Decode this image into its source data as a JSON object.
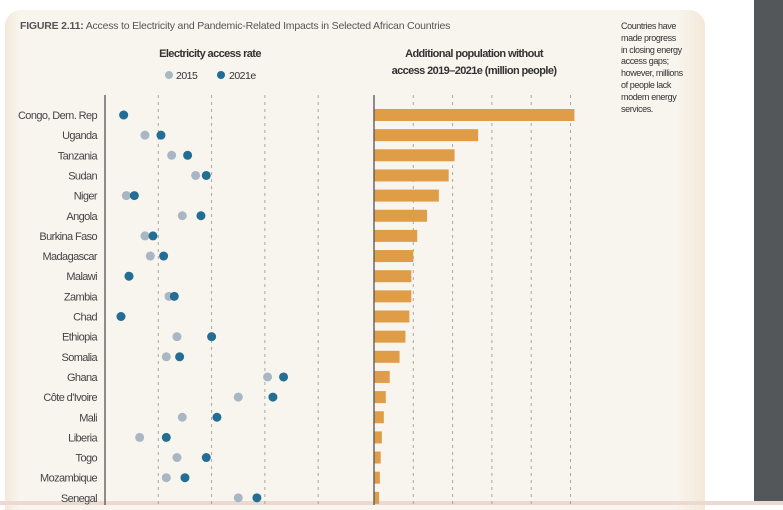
{
  "figure": {
    "label": "FIGURE 2.11:",
    "title": "Access to Electricity and Pandemic-Related Impacts in Selected African Countries"
  },
  "side_note": [
    "Countries have",
    "made progress",
    "in closing energy",
    "access gaps;",
    "however, millions",
    "of people lack",
    "modern energy",
    "services."
  ],
  "colors": {
    "c2015": "#a9b6c4",
    "c2021": "#236e94",
    "bar": "#e09d48",
    "grid": "#a8a8a8",
    "axis": "#555555"
  },
  "chart_data": [
    {
      "type": "scatter",
      "title": "Electricity access rate",
      "legend": [
        {
          "name": "2015",
          "color": "#a9b6c4"
        },
        {
          "name": "2021e",
          "color": "#236e94"
        }
      ],
      "legend_placement": "top",
      "categories": [
        "Congo, Dem. Rep",
        "Uganda",
        "Tanzania",
        "Sudan",
        "Niger",
        "Angola",
        "Burkina Faso",
        "Madagascar",
        "Malawi",
        "Zambia",
        "Chad",
        "Ethiopia",
        "Somalia",
        "Ghana",
        "Côte d'Ivoire",
        "Mali",
        "Liberia",
        "Togo",
        "Mozambique",
        "Senegal"
      ],
      "series": [
        {
          "name": "2015",
          "values": [
            7,
            15,
            25,
            34,
            8,
            29,
            15,
            17,
            9,
            24,
            6,
            27,
            23,
            61,
            50,
            29,
            13,
            27,
            23,
            50
          ]
        },
        {
          "name": "2021e",
          "values": [
            7,
            21,
            31,
            38,
            11,
            36,
            18,
            22,
            9,
            26,
            6,
            40,
            28,
            67,
            63,
            42,
            23,
            38,
            30,
            57
          ]
        }
      ],
      "xlim": [
        0,
        100
      ],
      "grid": true,
      "tick_labels_shown": false
    },
    {
      "type": "bar",
      "orientation": "horizontal",
      "title": "Additional population without access 2019–2021e (million people)",
      "title_lines": [
        "Additional population without",
        "access 2019–2021e (million people)"
      ],
      "categories": [
        "Congo, Dem. Rep",
        "Uganda",
        "Tanzania",
        "Sudan",
        "Niger",
        "Angola",
        "Burkina Faso",
        "Madagascar",
        "Malawi",
        "Zambia",
        "Chad",
        "Ethiopia",
        "Somalia",
        "Ghana",
        "Côte d'Ivoire",
        "Mali",
        "Liberia",
        "Togo",
        "Mozambique",
        "Senegal"
      ],
      "values": [
        5.1,
        2.65,
        2.05,
        1.9,
        1.65,
        1.35,
        1.1,
        1.0,
        0.95,
        0.95,
        0.9,
        0.8,
        0.65,
        0.4,
        0.3,
        0.25,
        0.2,
        0.17,
        0.15,
        0.13
      ],
      "xlim": [
        0,
        6
      ],
      "grid": true,
      "tick_labels_shown": false
    }
  ]
}
